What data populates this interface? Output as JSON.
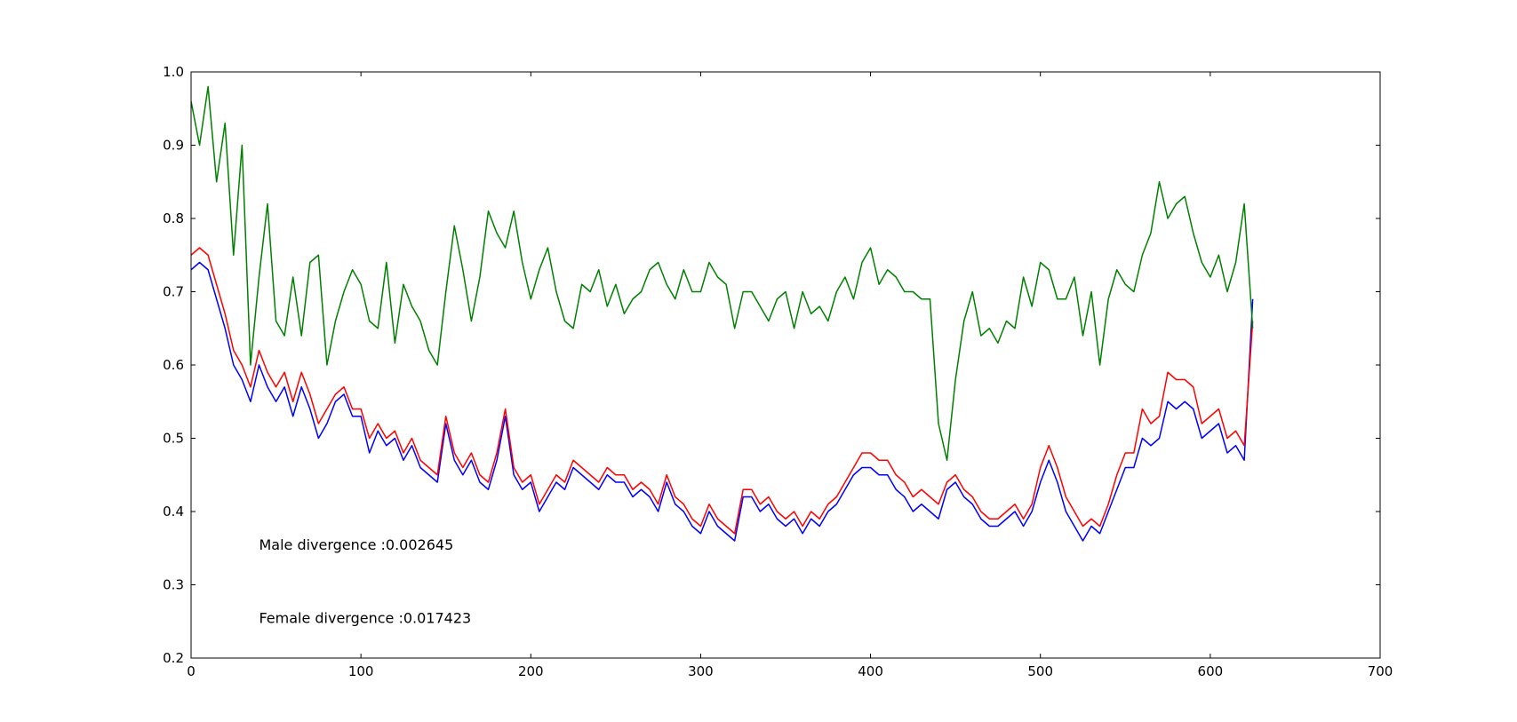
{
  "chart_data": {
    "type": "line",
    "title": "",
    "xlabel": "",
    "ylabel": "",
    "xlim": [
      0,
      700
    ],
    "ylim": [
      0.2,
      1.0
    ],
    "grid": false,
    "legend": "none",
    "x_ticks": [
      0,
      100,
      200,
      300,
      400,
      500,
      600,
      700
    ],
    "x_tick_labels": [
      "0",
      "100",
      "200",
      "300",
      "400",
      "500",
      "600",
      "700"
    ],
    "y_ticks": [
      0.2,
      0.3,
      0.4,
      0.5,
      0.6,
      0.7,
      0.8,
      0.9,
      1.0
    ],
    "y_tick_labels": [
      "0.2",
      "0.3",
      "0.4",
      "0.5",
      "0.6",
      "0.7",
      "0.8",
      "0.9",
      "1.0"
    ],
    "annotations": [
      {
        "text": "Male divergence :0.002645",
        "x": 40,
        "y": 0.355
      },
      {
        "text": "Female divergence :0.017423",
        "x": 40,
        "y": 0.255
      }
    ],
    "series": [
      {
        "color": "#0000ff",
        "x_step": 5,
        "values": [
          0.73,
          0.74,
          0.73,
          0.69,
          0.65,
          0.6,
          0.58,
          0.55,
          0.6,
          0.57,
          0.55,
          0.57,
          0.53,
          0.57,
          0.54,
          0.5,
          0.52,
          0.55,
          0.56,
          0.53,
          0.53,
          0.48,
          0.51,
          0.49,
          0.5,
          0.47,
          0.49,
          0.46,
          0.45,
          0.44,
          0.52,
          0.47,
          0.45,
          0.47,
          0.44,
          0.43,
          0.47,
          0.53,
          0.45,
          0.43,
          0.44,
          0.4,
          0.42,
          0.44,
          0.43,
          0.46,
          0.45,
          0.44,
          0.43,
          0.45,
          0.44,
          0.44,
          0.42,
          0.43,
          0.42,
          0.4,
          0.44,
          0.41,
          0.4,
          0.38,
          0.37,
          0.4,
          0.38,
          0.37,
          0.36,
          0.42,
          0.42,
          0.4,
          0.41,
          0.39,
          0.38,
          0.39,
          0.37,
          0.39,
          0.38,
          0.4,
          0.41,
          0.43,
          0.45,
          0.46,
          0.46,
          0.45,
          0.45,
          0.43,
          0.42,
          0.4,
          0.41,
          0.4,
          0.39,
          0.43,
          0.44,
          0.42,
          0.41,
          0.39,
          0.38,
          0.38,
          0.39,
          0.4,
          0.38,
          0.4,
          0.44,
          0.47,
          0.44,
          0.4,
          0.38,
          0.36,
          0.38,
          0.37,
          0.4,
          0.43,
          0.46,
          0.46,
          0.5,
          0.49,
          0.5,
          0.55,
          0.54,
          0.55,
          0.54,
          0.5,
          0.51,
          0.52,
          0.48,
          0.49,
          0.47,
          0.69
        ]
      },
      {
        "color": "#ff0000",
        "x_step": 5,
        "values": [
          0.75,
          0.76,
          0.75,
          0.71,
          0.67,
          0.62,
          0.6,
          0.57,
          0.62,
          0.59,
          0.57,
          0.59,
          0.55,
          0.59,
          0.56,
          0.52,
          0.54,
          0.56,
          0.57,
          0.54,
          0.54,
          0.5,
          0.52,
          0.5,
          0.51,
          0.48,
          0.5,
          0.47,
          0.46,
          0.45,
          0.53,
          0.48,
          0.46,
          0.48,
          0.45,
          0.44,
          0.48,
          0.54,
          0.46,
          0.44,
          0.45,
          0.41,
          0.43,
          0.45,
          0.44,
          0.47,
          0.46,
          0.45,
          0.44,
          0.46,
          0.45,
          0.45,
          0.43,
          0.44,
          0.43,
          0.41,
          0.45,
          0.42,
          0.41,
          0.39,
          0.38,
          0.41,
          0.39,
          0.38,
          0.37,
          0.43,
          0.43,
          0.41,
          0.42,
          0.4,
          0.39,
          0.4,
          0.38,
          0.4,
          0.39,
          0.41,
          0.42,
          0.44,
          0.46,
          0.48,
          0.48,
          0.47,
          0.47,
          0.45,
          0.44,
          0.42,
          0.43,
          0.42,
          0.41,
          0.44,
          0.45,
          0.43,
          0.42,
          0.4,
          0.39,
          0.39,
          0.4,
          0.41,
          0.39,
          0.41,
          0.46,
          0.49,
          0.46,
          0.42,
          0.4,
          0.38,
          0.39,
          0.38,
          0.41,
          0.45,
          0.48,
          0.48,
          0.54,
          0.52,
          0.53,
          0.59,
          0.58,
          0.58,
          0.57,
          0.52,
          0.53,
          0.54,
          0.5,
          0.51,
          0.49,
          0.66
        ]
      },
      {
        "color": "#008000",
        "x_step": 5,
        "values": [
          0.96,
          0.9,
          0.98,
          0.85,
          0.93,
          0.75,
          0.9,
          0.6,
          0.72,
          0.82,
          0.66,
          0.64,
          0.72,
          0.64,
          0.74,
          0.75,
          0.6,
          0.66,
          0.7,
          0.73,
          0.71,
          0.66,
          0.65,
          0.74,
          0.63,
          0.71,
          0.68,
          0.66,
          0.62,
          0.6,
          0.7,
          0.79,
          0.73,
          0.66,
          0.72,
          0.81,
          0.78,
          0.76,
          0.81,
          0.74,
          0.69,
          0.73,
          0.76,
          0.7,
          0.66,
          0.65,
          0.71,
          0.7,
          0.73,
          0.68,
          0.71,
          0.67,
          0.69,
          0.7,
          0.73,
          0.74,
          0.71,
          0.69,
          0.73,
          0.7,
          0.7,
          0.74,
          0.72,
          0.71,
          0.65,
          0.7,
          0.7,
          0.68,
          0.66,
          0.69,
          0.7,
          0.65,
          0.7,
          0.67,
          0.68,
          0.66,
          0.7,
          0.72,
          0.69,
          0.74,
          0.76,
          0.71,
          0.73,
          0.72,
          0.7,
          0.7,
          0.69,
          0.69,
          0.52,
          0.47,
          0.58,
          0.66,
          0.7,
          0.64,
          0.65,
          0.63,
          0.66,
          0.65,
          0.72,
          0.68,
          0.74,
          0.73,
          0.69,
          0.69,
          0.72,
          0.64,
          0.7,
          0.6,
          0.69,
          0.73,
          0.71,
          0.7,
          0.75,
          0.78,
          0.85,
          0.8,
          0.82,
          0.83,
          0.78,
          0.74,
          0.72,
          0.75,
          0.7,
          0.74,
          0.82,
          0.65
        ]
      }
    ]
  }
}
